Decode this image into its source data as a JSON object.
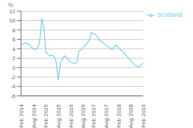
{
  "chart_data": {
    "type": "line",
    "ylabel": "%",
    "categories": [
      "Feb 2014",
      null,
      null,
      null,
      null,
      null,
      "Aug 2014",
      null,
      null,
      null,
      null,
      null,
      "Feb 2015",
      null,
      null,
      null,
      null,
      null,
      "Aug 2015",
      null,
      null,
      null,
      null,
      null,
      "Feb 2016",
      null,
      null,
      null,
      null,
      null,
      "Aug 2016",
      null,
      null,
      null,
      null,
      "Feb 2017",
      null,
      null,
      null,
      null,
      null,
      "Aug 2017",
      null,
      null,
      null,
      null,
      null,
      "Feb 2018",
      null,
      null,
      null,
      null,
      null,
      "Aug 2018",
      null,
      null,
      null,
      null,
      null,
      "Feb 2019"
    ],
    "series": [
      {
        "name": "Scotland",
        "color": "#6dcff6",
        "values": [
          4.7,
          5.0,
          5.3,
          5.1,
          4.9,
          4.3,
          4.0,
          3.8,
          4.2,
          5.5,
          10.5,
          8.5,
          3.2,
          2.8,
          2.5,
          2.6,
          2.4,
          1.2,
          -2.7,
          1.0,
          1.8,
          2.5,
          2.2,
          1.5,
          1.2,
          1.0,
          0.8,
          1.0,
          3.5,
          3.8,
          4.2,
          4.8,
          5.2,
          5.8,
          7.5,
          7.2,
          7.0,
          6.5,
          5.8,
          5.5,
          5.2,
          4.8,
          4.5,
          4.2,
          3.8,
          4.5,
          4.8,
          4.2,
          3.8,
          3.5,
          3.0,
          2.5,
          2.0,
          1.5,
          1.0,
          0.5,
          0.3,
          0.2,
          0.5,
          1.0
        ]
      }
    ],
    "ylim": [
      -6,
      12
    ],
    "yticks": [
      -6,
      -4,
      -2,
      0,
      2,
      4,
      6,
      8,
      10,
      12
    ],
    "grid": true,
    "legend": "right"
  }
}
